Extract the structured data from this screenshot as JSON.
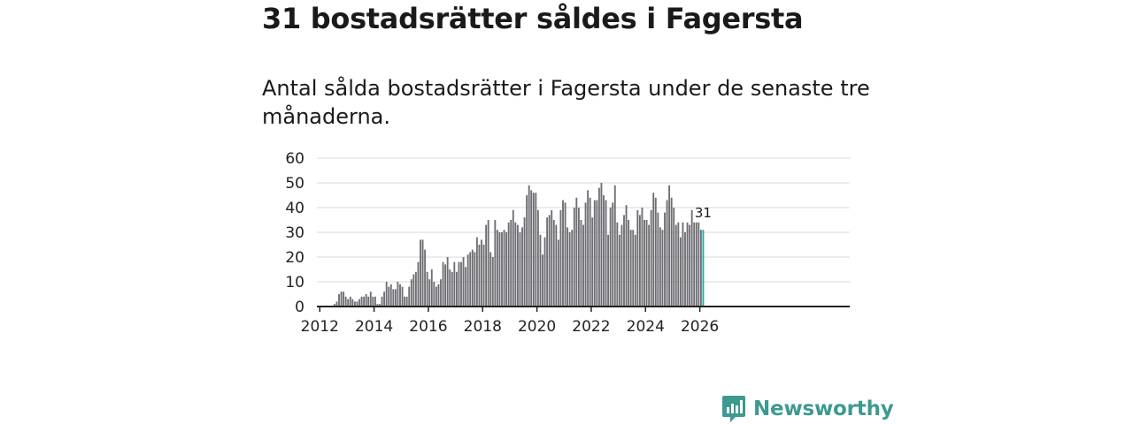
{
  "header": {
    "title": "31 bostadsrätter såldes i Fagersta",
    "subtitle": "Antal sålda bostadsrätter i Fagersta under de senaste tre månaderna."
  },
  "brand": {
    "name": "Newsworthy",
    "icon": "newsworthy-logo-icon",
    "color": "#3d9a8f"
  },
  "colors": {
    "bar": "#6d6d73",
    "highlight": "#2aa79b",
    "grid": "#d9d9d9",
    "axis": "#222222"
  },
  "chart_data": {
    "type": "bar",
    "title": "",
    "xlabel": "",
    "ylabel": "",
    "ylim": [
      0,
      60
    ],
    "yticks": [
      0,
      10,
      20,
      30,
      40,
      50,
      60
    ],
    "xticks": [
      "2012",
      "2014",
      "2016",
      "2018",
      "2020",
      "2022",
      "2024",
      "2026"
    ],
    "grid": true,
    "start": "2011-01",
    "annotation": {
      "text": "31",
      "index": 181
    },
    "values": [
      0,
      0,
      0,
      0,
      0,
      0,
      0,
      0,
      0,
      0,
      0,
      0,
      0,
      0,
      0,
      0,
      0,
      0,
      1,
      2,
      5,
      6,
      6,
      4,
      3,
      4,
      3,
      2,
      2,
      3,
      4,
      4,
      5,
      4,
      6,
      4,
      4,
      1,
      1,
      4,
      6,
      10,
      8,
      9,
      7,
      7,
      10,
      9,
      8,
      4,
      4,
      8,
      11,
      13,
      14,
      18,
      27,
      27,
      23,
      14,
      11,
      15,
      10,
      8,
      9,
      11,
      18,
      17,
      20,
      15,
      14,
      18,
      14,
      18,
      18,
      20,
      16,
      21,
      22,
      23,
      22,
      28,
      25,
      27,
      25,
      33,
      35,
      22,
      20,
      35,
      31,
      30,
      30,
      31,
      30,
      34,
      35,
      39,
      34,
      33,
      30,
      32,
      36,
      45,
      49,
      47,
      46,
      46,
      39,
      29,
      21,
      28,
      36,
      37,
      39,
      35,
      33,
      27,
      39,
      43,
      42,
      32,
      30,
      31,
      40,
      44,
      40,
      35,
      33,
      42,
      47,
      44,
      36,
      43,
      43,
      48,
      50,
      45,
      43,
      29,
      40,
      42,
      49,
      34,
      29,
      33,
      37,
      41,
      35,
      31,
      31,
      29,
      39,
      37,
      40,
      35,
      35,
      33,
      39,
      46,
      44,
      38,
      32,
      31,
      38,
      43,
      49,
      44,
      40,
      33,
      34,
      28,
      34,
      30,
      34,
      33,
      39,
      34,
      34,
      34,
      31,
      31
    ]
  }
}
